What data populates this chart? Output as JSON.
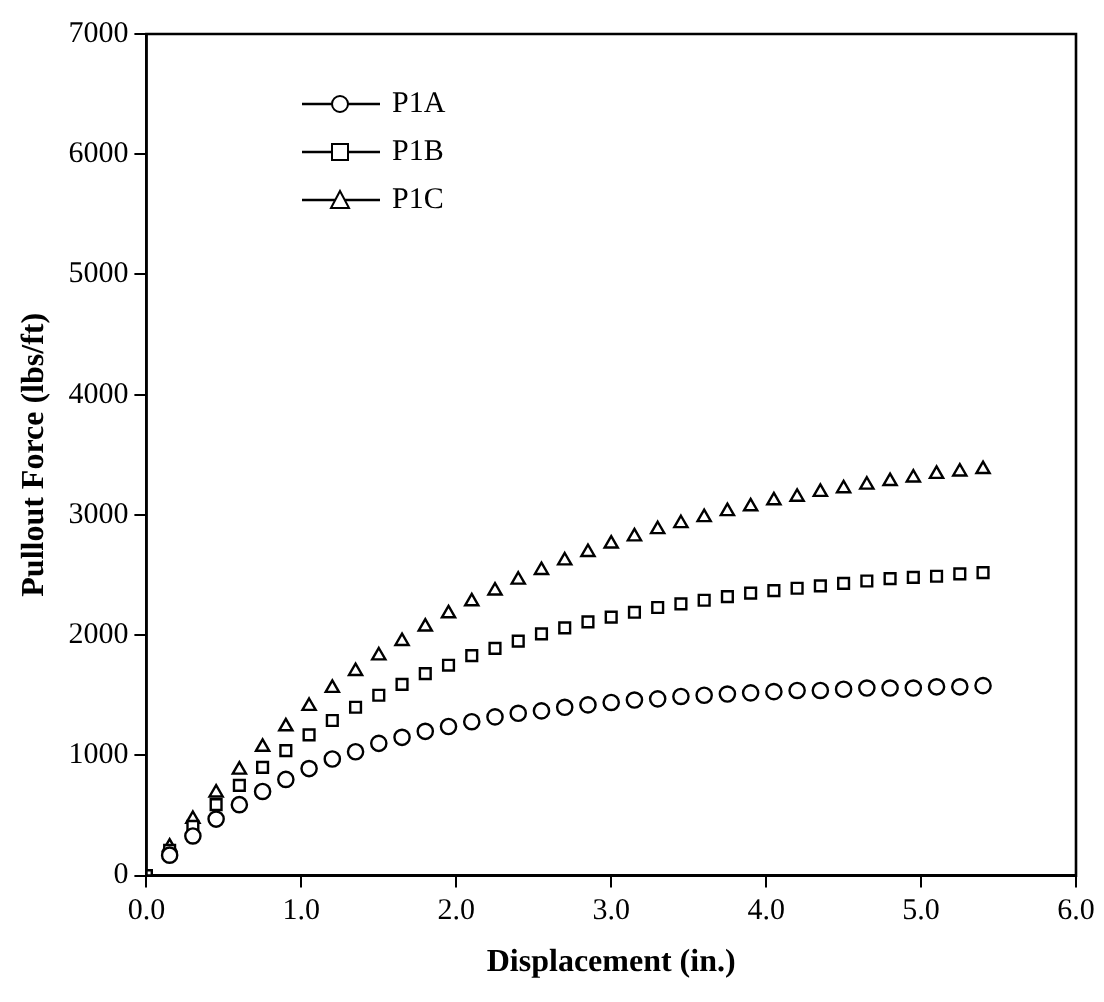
{
  "chart_data": {
    "type": "scatter",
    "xlabel": "Displacement (in.)",
    "ylabel": "Pullout Force (lbs/ft)",
    "xlim": [
      0,
      6
    ],
    "xticks": [
      {
        "value": 0,
        "label": "0.0"
      },
      {
        "value": 1,
        "label": "1.0"
      },
      {
        "value": 2,
        "label": "2.0"
      },
      {
        "value": 3,
        "label": "3.0"
      },
      {
        "value": 4,
        "label": "4.0"
      },
      {
        "value": 5,
        "label": "5.0"
      },
      {
        "value": 6,
        "label": "6.0"
      }
    ],
    "ylim": [
      0,
      7000
    ],
    "yticks": [
      0,
      1000,
      2000,
      3000,
      4000,
      5000,
      6000,
      7000
    ],
    "grid": false,
    "legend": "top left",
    "x": [
      0,
      0.15,
      0.3,
      0.45,
      0.6,
      0.75,
      0.9,
      1.05,
      1.2,
      1.35,
      1.5,
      1.65,
      1.8,
      1.95,
      2.1,
      2.25,
      2.4,
      2.55,
      2.7,
      2.85,
      3,
      3.15,
      3.3,
      3.45,
      3.6,
      3.75,
      3.9,
      4.05,
      4.2,
      4.35,
      4.5,
      4.65,
      4.8,
      4.95,
      5.1,
      5.25,
      5.4
    ],
    "series": [
      {
        "name": "P1A",
        "color": "#000000",
        "marker": "circle",
        "values": [
          null,
          170,
          330,
          470,
          590,
          700,
          800,
          890,
          970,
          1030,
          1100,
          1150,
          1200,
          1240,
          1280,
          1320,
          1350,
          1370,
          1400,
          1420,
          1440,
          1460,
          1470,
          1490,
          1500,
          1510,
          1520,
          1530,
          1540,
          1540,
          1550,
          1560,
          1560,
          1560,
          1570,
          1570,
          1580
        ]
      },
      {
        "name": "P1B",
        "color": "#000000",
        "marker": "square",
        "values": [
          0,
          210,
          410,
          590,
          750,
          900,
          1040,
          1170,
          1290,
          1400,
          1500,
          1590,
          1680,
          1750,
          1830,
          1890,
          1950,
          2010,
          2060,
          2110,
          2150,
          2190,
          2230,
          2260,
          2290,
          2320,
          2350,
          2370,
          2390,
          2410,
          2430,
          2450,
          2470,
          2480,
          2490,
          2510,
          2520
        ]
      },
      {
        "name": "P1C",
        "color": "#000000",
        "marker": "triangle",
        "values": [
          null,
          240,
          470,
          690,
          880,
          1070,
          1240,
          1410,
          1560,
          1700,
          1830,
          1950,
          2070,
          2180,
          2280,
          2370,
          2460,
          2540,
          2620,
          2690,
          2760,
          2820,
          2880,
          2930,
          2980,
          3030,
          3070,
          3120,
          3150,
          3190,
          3220,
          3250,
          3280,
          3310,
          3340,
          3360,
          3380
        ]
      }
    ]
  }
}
